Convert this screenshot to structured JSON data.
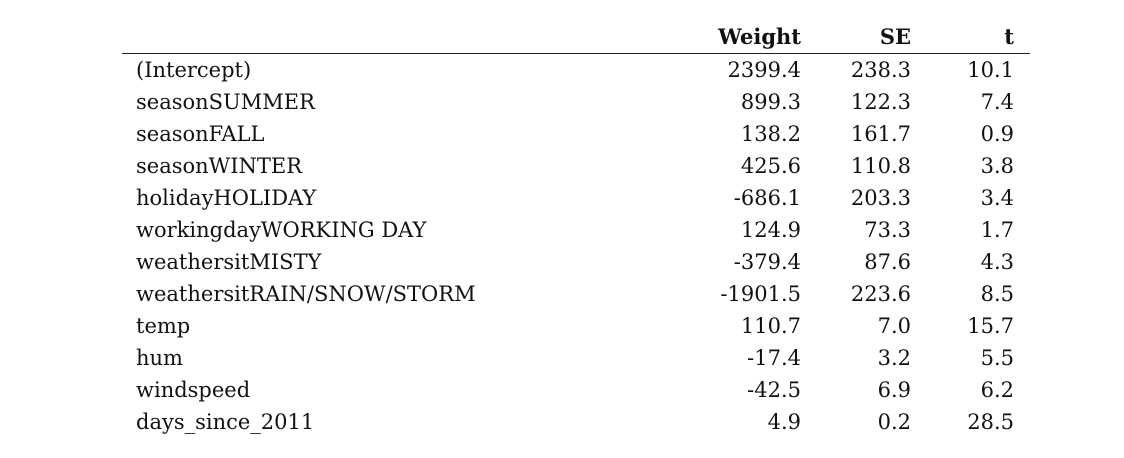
{
  "table": {
    "headers": {
      "term": "",
      "weight": "Weight",
      "se": "SE",
      "t": "t"
    },
    "rows": [
      {
        "term": "(Intercept)",
        "weight": "2399.4",
        "se": "238.3",
        "t": "10.1"
      },
      {
        "term": "seasonSUMMER",
        "weight": "899.3",
        "se": "122.3",
        "t": "7.4"
      },
      {
        "term": "seasonFALL",
        "weight": "138.2",
        "se": "161.7",
        "t": "0.9"
      },
      {
        "term": "seasonWINTER",
        "weight": "425.6",
        "se": "110.8",
        "t": "3.8"
      },
      {
        "term": "holidayHOLIDAY",
        "weight": "-686.1",
        "se": "203.3",
        "t": "3.4"
      },
      {
        "term": "workingdayWORKING DAY",
        "weight": "124.9",
        "se": "73.3",
        "t": "1.7"
      },
      {
        "term": "weathersitMISTY",
        "weight": "-379.4",
        "se": "87.6",
        "t": "4.3"
      },
      {
        "term": "weathersitRAIN/SNOW/STORM",
        "weight": "-1901.5",
        "se": "223.6",
        "t": "8.5"
      },
      {
        "term": "temp",
        "weight": "110.7",
        "se": "7.0",
        "t": "15.7"
      },
      {
        "term": "hum",
        "weight": "-17.4",
        "se": "3.2",
        "t": "5.5"
      },
      {
        "term": "windspeed",
        "weight": "-42.5",
        "se": "6.9",
        "t": "6.2"
      },
      {
        "term": "days_since_2011",
        "weight": "4.9",
        "se": "0.2",
        "t": "28.5"
      }
    ]
  }
}
